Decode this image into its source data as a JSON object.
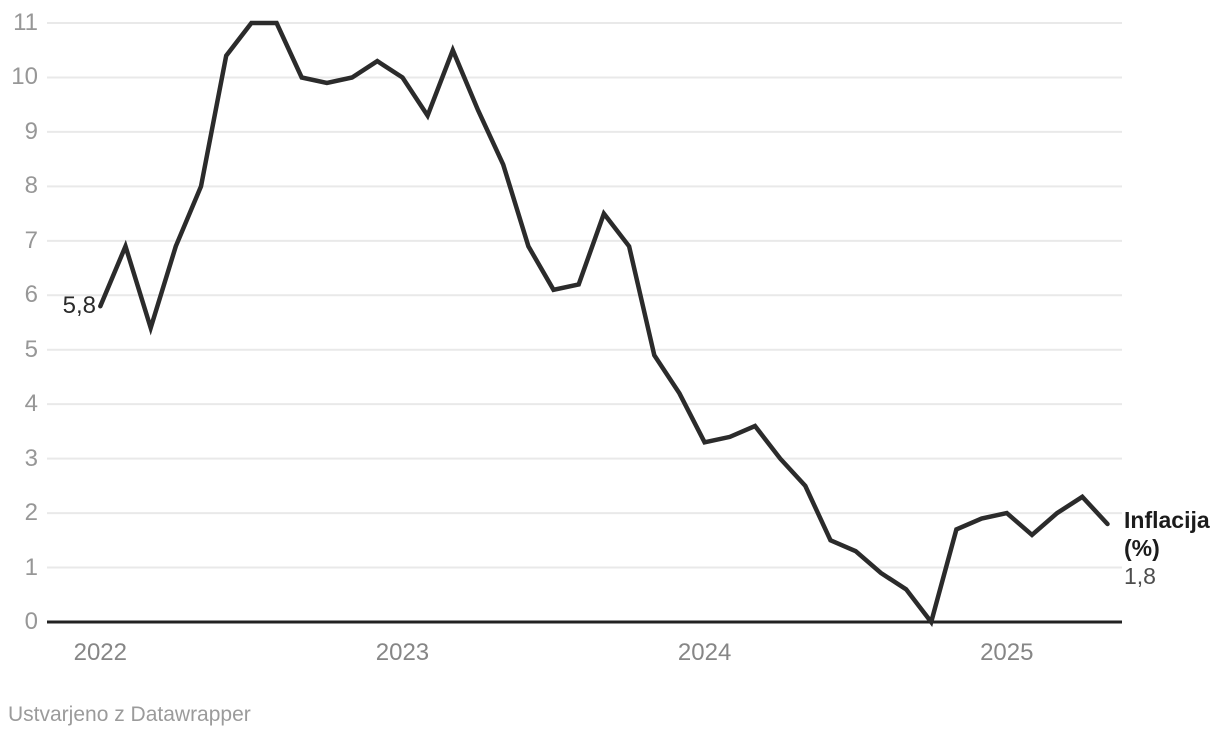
{
  "chart_data": {
    "type": "line",
    "title": "",
    "grid": "horizontal",
    "legend_position": "end-of-line",
    "ylim": [
      0,
      11
    ],
    "y_ticks": [
      0,
      1,
      2,
      3,
      4,
      5,
      6,
      7,
      8,
      9,
      10,
      11
    ],
    "x_year_labels": [
      {
        "label": "2022",
        "month_index": 0
      },
      {
        "label": "2023",
        "month_index": 12
      },
      {
        "label": "2024",
        "month_index": 24
      },
      {
        "label": "2025",
        "month_index": 36
      }
    ],
    "x": [
      "2022-01",
      "2022-02",
      "2022-03",
      "2022-04",
      "2022-05",
      "2022-06",
      "2022-07",
      "2022-08",
      "2022-09",
      "2022-10",
      "2022-11",
      "2022-12",
      "2023-01",
      "2023-02",
      "2023-03",
      "2023-04",
      "2023-05",
      "2023-06",
      "2023-07",
      "2023-08",
      "2023-09",
      "2023-10",
      "2023-11",
      "2023-12",
      "2024-01",
      "2024-02",
      "2024-03",
      "2024-04",
      "2024-05",
      "2024-06",
      "2024-07",
      "2024-08",
      "2024-09",
      "2024-10",
      "2024-11",
      "2024-12",
      "2025-01",
      "2025-02",
      "2025-03",
      "2025-04",
      "2025-05"
    ],
    "series": [
      {
        "name": "Inflacija (%)",
        "values": [
          5.8,
          6.9,
          5.4,
          6.9,
          8.0,
          10.4,
          11.0,
          11.0,
          10.0,
          9.9,
          10.0,
          10.3,
          10.0,
          9.3,
          10.5,
          9.4,
          8.4,
          6.9,
          6.1,
          6.2,
          7.5,
          6.9,
          4.9,
          4.2,
          3.3,
          3.4,
          3.6,
          3.0,
          2.5,
          1.5,
          1.3,
          0.9,
          0.6,
          0.0,
          1.7,
          1.9,
          2.0,
          1.6,
          2.0,
          2.3,
          1.8
        ]
      }
    ],
    "labels": {
      "start_value": "5,8",
      "end_value": "1,8",
      "series_line1": "Inflacija",
      "series_line2": "(%)"
    }
  },
  "colors": {
    "line": "#2b2b2b",
    "grid": "#e9e9e9",
    "axis": "#222222",
    "y_tick_text": "#979797",
    "x_tick_text": "#868686",
    "start_label_text": "#2a2a2a",
    "series_label_text": "#1c1c1c",
    "end_value_text": "#4d4d4d",
    "credit_text": "#9b9b9b"
  },
  "footer": {
    "credit": "Ustvarjeno z Datawrapper"
  }
}
